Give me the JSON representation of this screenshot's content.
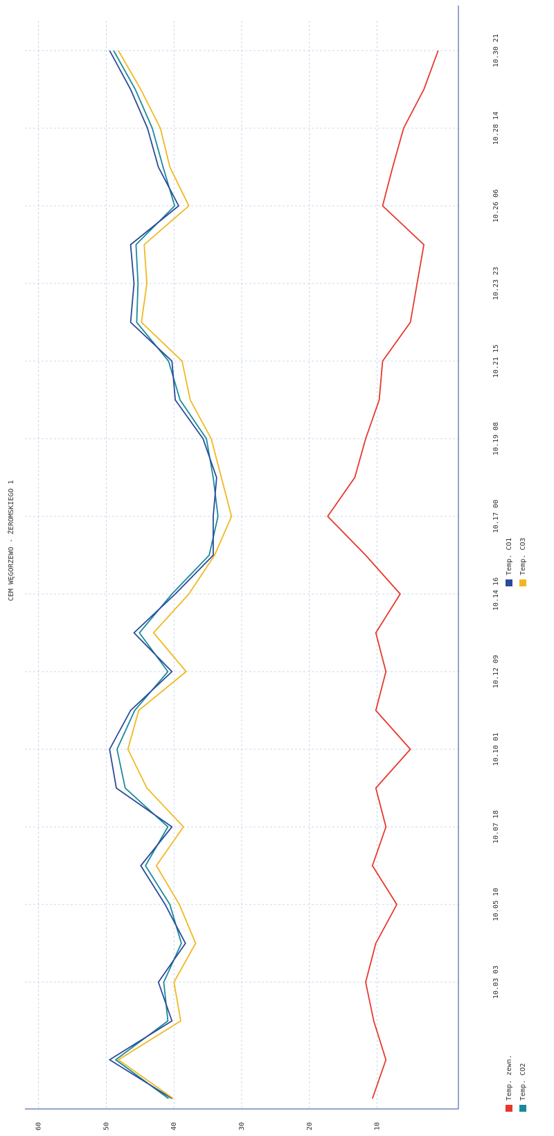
{
  "chart_data": {
    "type": "line",
    "title": "CEM WĘGORZEWO - ŻEROMSKIEGO 1",
    "categories": [
      null,
      null,
      null,
      "10.03 03",
      null,
      "10.05 10",
      null,
      "10.07 18",
      null,
      "10.10 01",
      null,
      "10.12 09",
      null,
      "10.14 16",
      null,
      "10.17 00",
      null,
      "10.19 08",
      null,
      "10.21 15",
      null,
      "10.23 23",
      null,
      "10.26 06",
      null,
      "10.28 14",
      null,
      "10.30 21"
    ],
    "series": [
      {
        "name": "Temp. zewn.",
        "color": "#e8372c",
        "values": [
          10.7,
          8.7,
          10.5,
          11.7,
          10.2,
          7.1,
          10.7,
          8.7,
          10.2,
          5.1,
          10.2,
          8.7,
          10.2,
          6.6,
          11.7,
          17.3,
          13.3,
          11.7,
          9.7,
          9.2,
          5.1,
          4.1,
          3.1,
          9.2,
          7.7,
          6.1,
          3.1,
          1.0
        ]
      },
      {
        "name": "Temp. CO2",
        "color": "#1a8a9a",
        "values": [
          40.8,
          48.6,
          40.9,
          41.5,
          38.9,
          40.6,
          44.2,
          40.9,
          47.2,
          48.4,
          45.8,
          40.9,
          45.1,
          40.3,
          34.8,
          33.5,
          34.2,
          35.2,
          39.1,
          40.8,
          45.5,
          45.3,
          45.6,
          39.9,
          41.6,
          43.2,
          45.7,
          48.9
        ]
      },
      {
        "name": "Temp. CO1",
        "color": "#2a4a9a",
        "values": [
          40.3,
          49.5,
          40.3,
          42.3,
          38.3,
          41.3,
          44.9,
          40.3,
          48.5,
          49.5,
          46.4,
          40.3,
          45.9,
          39.8,
          34.2,
          34.2,
          33.7,
          35.7,
          39.8,
          40.3,
          46.4,
          45.9,
          46.4,
          39.3,
          42.3,
          43.9,
          46.4,
          49.5
        ]
      },
      {
        "name": "Temp. CO3",
        "color": "#f0b820",
        "values": [
          40.1,
          48.2,
          39.0,
          40.0,
          36.8,
          39.2,
          42.6,
          38.6,
          44.0,
          46.8,
          45.2,
          38.2,
          43.0,
          37.8,
          34.0,
          31.5,
          33.0,
          34.5,
          37.6,
          38.8,
          44.8,
          44.0,
          44.4,
          37.8,
          40.6,
          42.0,
          44.9,
          48.2
        ]
      }
    ],
    "ylim": [
      -2,
      62
    ],
    "yticks": [
      10,
      20,
      30,
      40,
      50,
      60
    ],
    "grid": true
  }
}
